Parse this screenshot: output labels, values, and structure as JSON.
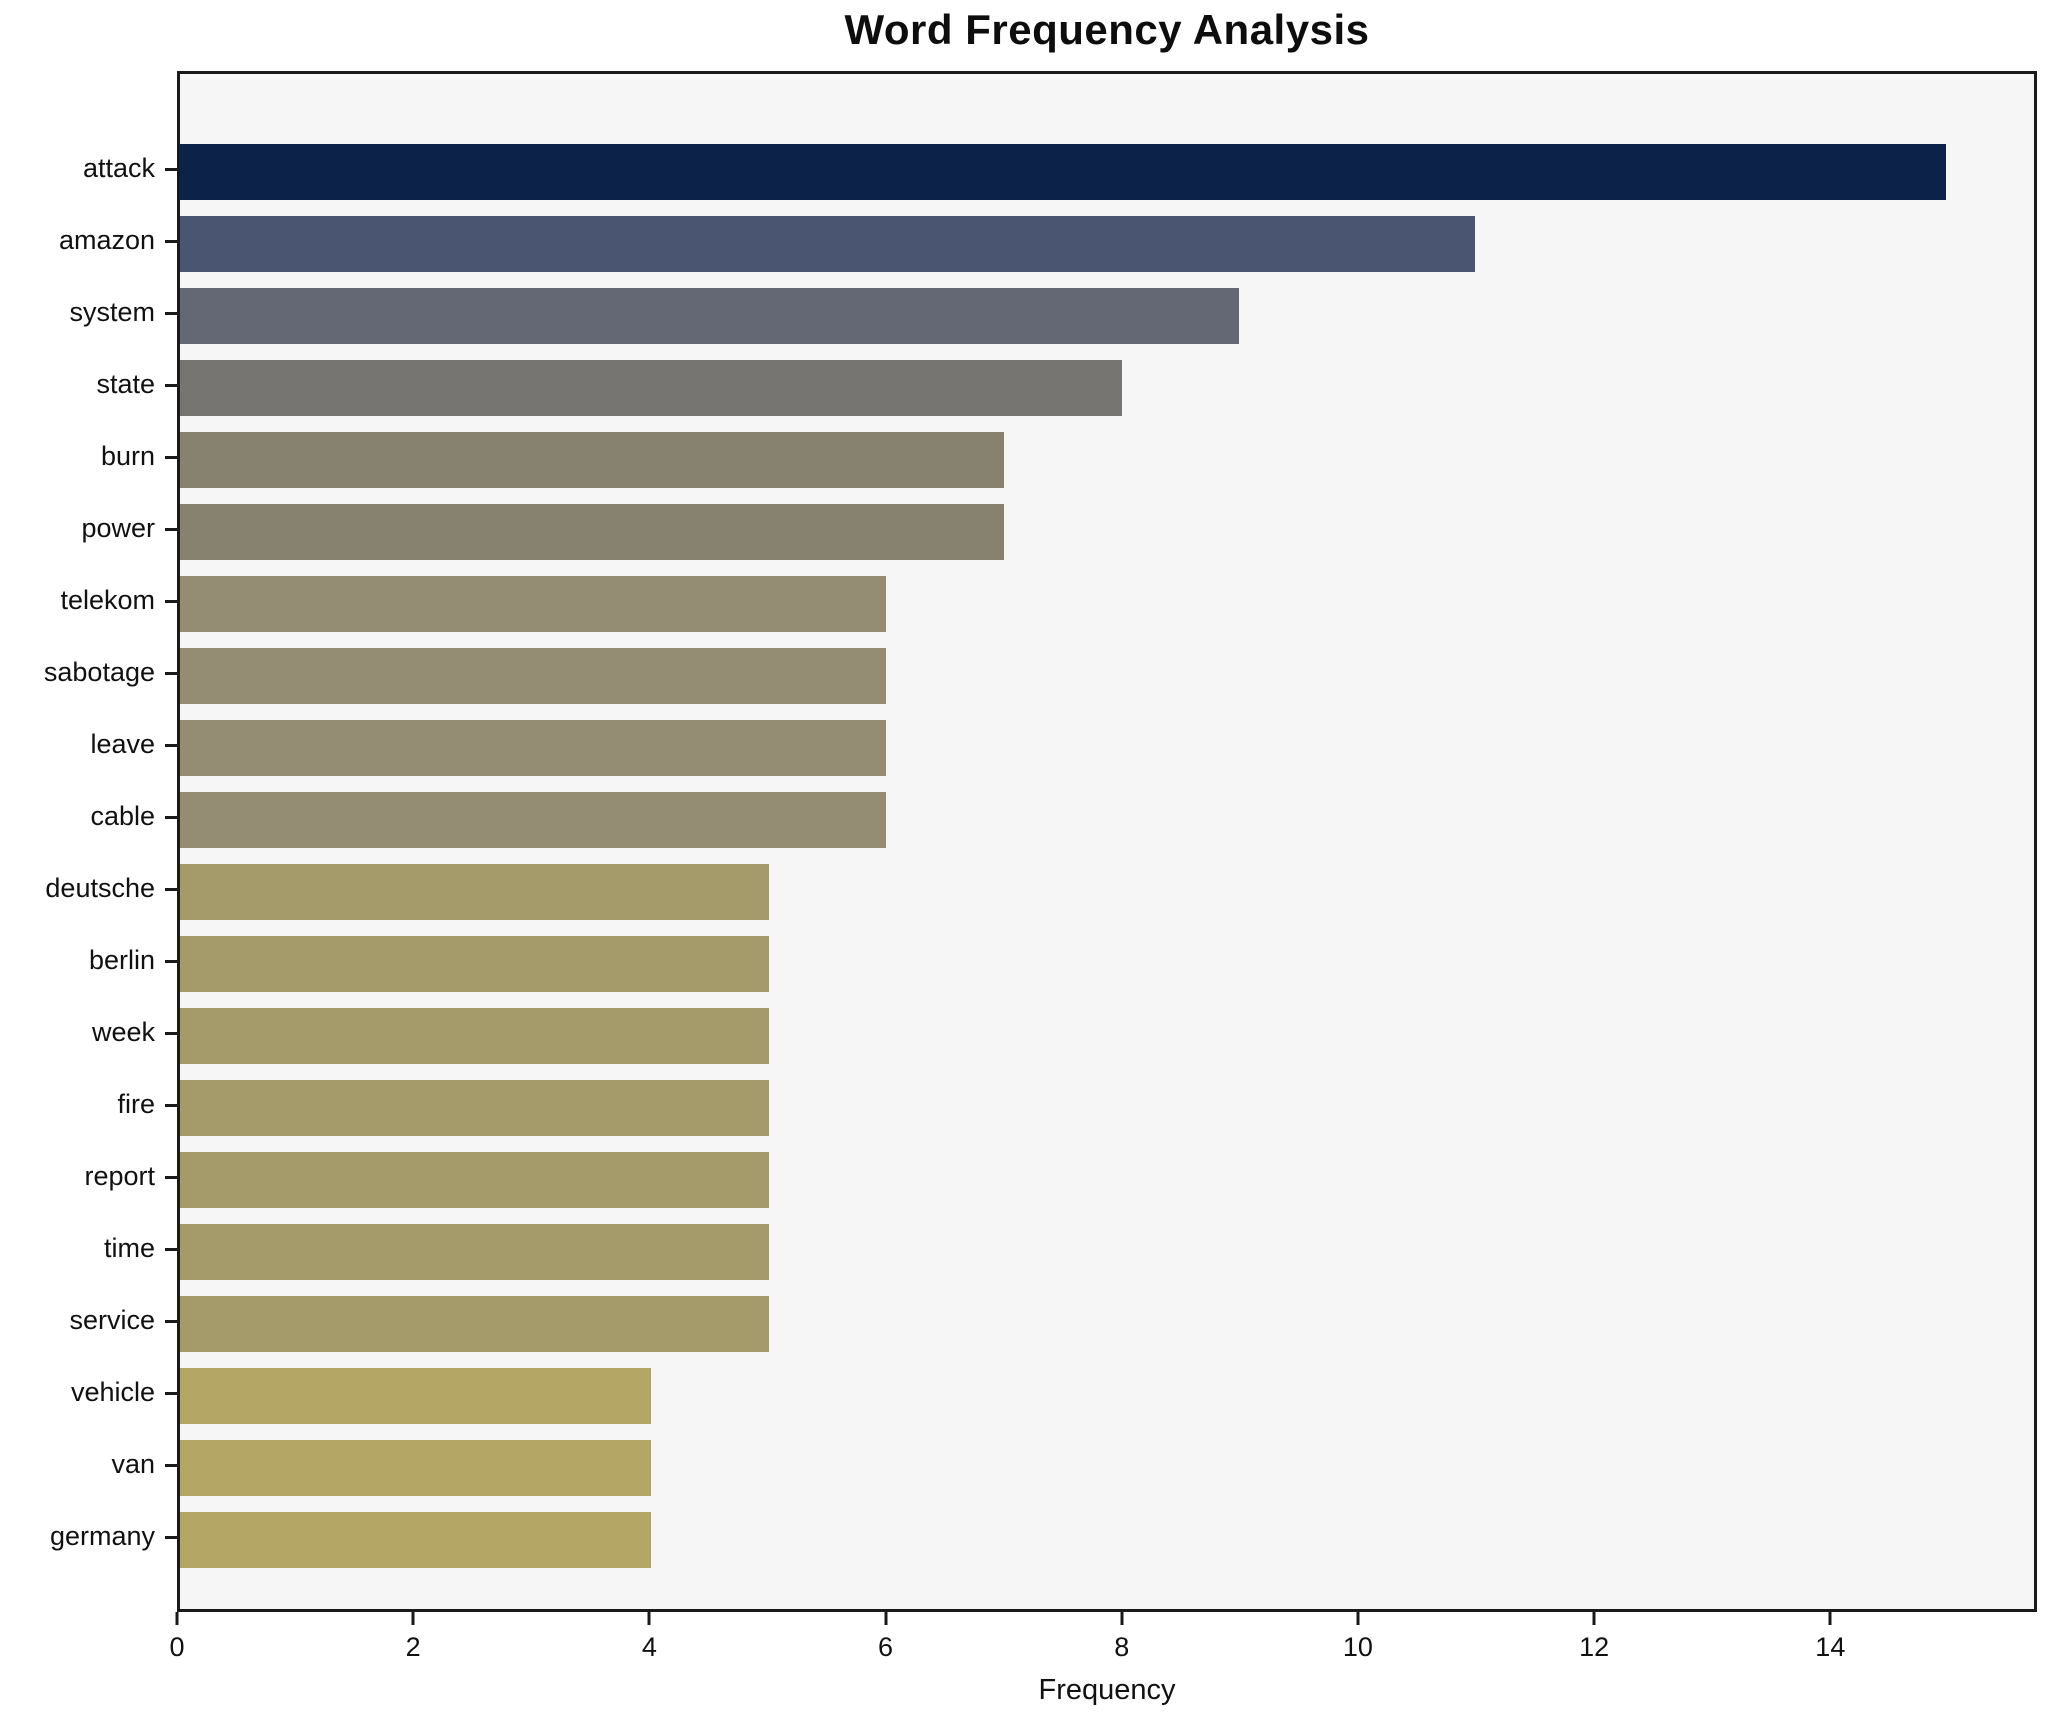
{
  "chart_data": {
    "type": "bar",
    "orientation": "horizontal",
    "title": "Word Frequency Analysis",
    "xlabel": "Frequency",
    "ylabel": "",
    "categories": [
      "attack",
      "amazon",
      "system",
      "state",
      "burn",
      "power",
      "telekom",
      "sabotage",
      "leave",
      "cable",
      "deutsche",
      "berlin",
      "week",
      "fire",
      "report",
      "time",
      "service",
      "vehicle",
      "van",
      "germany"
    ],
    "values": [
      15,
      11,
      9,
      8,
      7,
      7,
      6,
      6,
      6,
      6,
      5,
      5,
      5,
      5,
      5,
      5,
      5,
      4,
      4,
      4
    ],
    "bar_colors": [
      "#0c2249",
      "#4a5572",
      "#646874",
      "#767572",
      "#87826f",
      "#87826f",
      "#948d73",
      "#948d73",
      "#948d73",
      "#948d73",
      "#a49a6a",
      "#a49a6a",
      "#a49a6a",
      "#a49a6a",
      "#a49a6a",
      "#a49a6a",
      "#a49a6a",
      "#b4a766",
      "#b4a766",
      "#b4a766"
    ],
    "xlim": [
      0,
      15.75
    ],
    "xticks": [
      0,
      2,
      4,
      6,
      8,
      10,
      12,
      14
    ],
    "grid": false,
    "legend": false,
    "plot_background": "#f6f6f7",
    "figure_background": "#ffffff",
    "axis_color": "#1a1a1a",
    "text_color": "#111111",
    "colormap": "cividis"
  }
}
